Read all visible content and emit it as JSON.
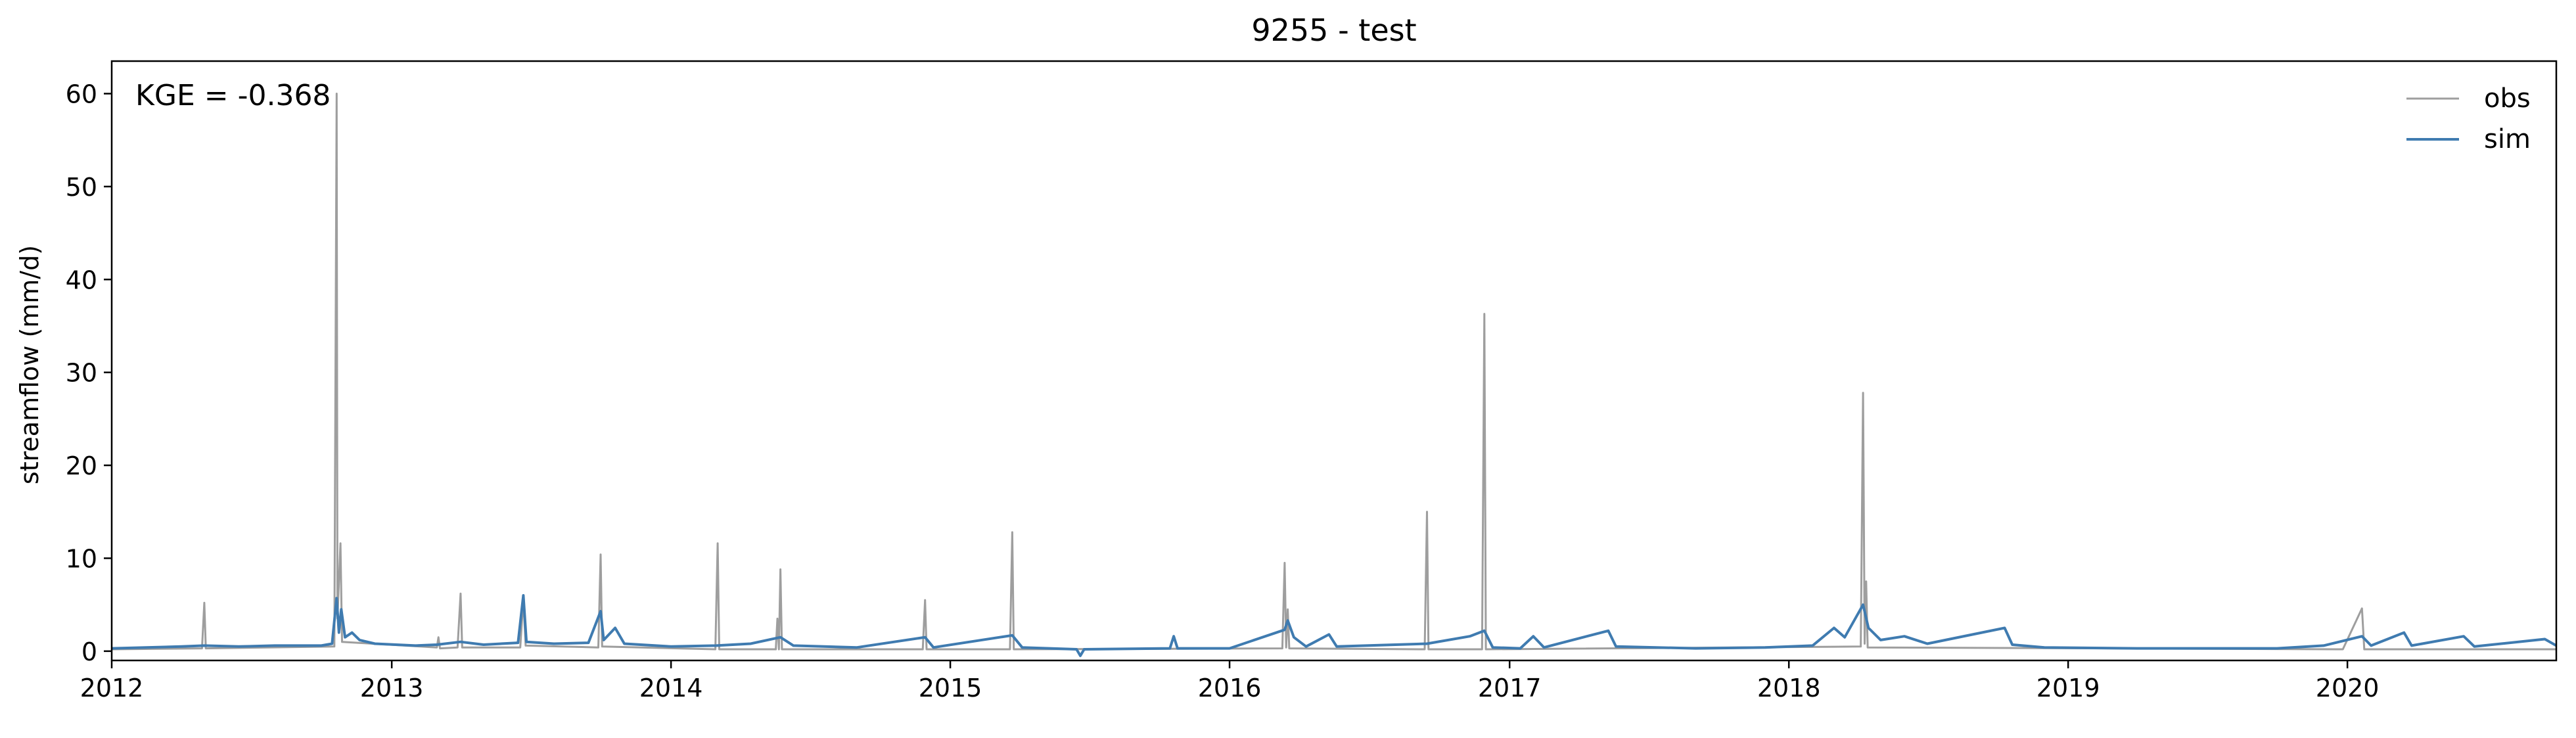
{
  "chart_data": {
    "type": "line",
    "title": "9255 - test",
    "xlabel": "",
    "ylabel": "streamflow (mm/d)",
    "annotation": "KGE = -0.368",
    "xlim": [
      "2012-01-01",
      "2020-09-30"
    ],
    "ylim": [
      -1,
      63.5
    ],
    "xticks": [
      "2012",
      "2013",
      "2014",
      "2015",
      "2016",
      "2017",
      "2018",
      "2019",
      "2020"
    ],
    "yticks": [
      0,
      10,
      20,
      30,
      40,
      50,
      60
    ],
    "grid": false,
    "legend": "top-right",
    "series": [
      {
        "name": "obs",
        "color": "#9e9e9e",
        "points": [
          [
            "2012-01-01",
            0.2
          ],
          [
            "2012-04-28",
            0.3
          ],
          [
            "2012-05-01",
            5.2
          ],
          [
            "2012-05-03",
            0.3
          ],
          [
            "2012-10-18",
            0.5
          ],
          [
            "2012-10-21",
            60.0
          ],
          [
            "2012-10-22",
            3.5
          ],
          [
            "2012-10-26",
            11.6
          ],
          [
            "2012-10-28",
            1.0
          ],
          [
            "2013-03-01",
            0.4
          ],
          [
            "2013-03-03",
            1.5
          ],
          [
            "2013-03-05",
            0.3
          ],
          [
            "2013-03-28",
            0.4
          ],
          [
            "2013-04-01",
            6.2
          ],
          [
            "2013-04-03",
            0.4
          ],
          [
            "2013-06-18",
            0.4
          ],
          [
            "2013-06-22",
            5.6
          ],
          [
            "2013-06-25",
            0.6
          ],
          [
            "2013-09-28",
            0.4
          ],
          [
            "2013-10-01",
            10.4
          ],
          [
            "2013-10-03",
            0.5
          ],
          [
            "2014-02-28",
            0.2
          ],
          [
            "2014-03-03",
            11.6
          ],
          [
            "2014-03-05",
            0.2
          ],
          [
            "2014-05-18",
            0.2
          ],
          [
            "2014-05-20",
            3.5
          ],
          [
            "2014-05-22",
            0.2
          ],
          [
            "2014-05-24",
            8.8
          ],
          [
            "2014-05-26",
            0.2
          ],
          [
            "2014-11-26",
            0.2
          ],
          [
            "2014-11-29",
            5.5
          ],
          [
            "2014-12-01",
            0.2
          ],
          [
            "2015-03-20",
            0.2
          ],
          [
            "2015-03-23",
            12.8
          ],
          [
            "2015-03-25",
            0.2
          ],
          [
            "2016-03-10",
            0.3
          ],
          [
            "2016-03-13",
            9.5
          ],
          [
            "2016-03-15",
            0.4
          ],
          [
            "2016-03-17",
            4.5
          ],
          [
            "2016-03-19",
            0.3
          ],
          [
            "2016-09-12",
            0.2
          ],
          [
            "2016-09-15",
            15.0
          ],
          [
            "2016-09-17",
            0.2
          ],
          [
            "2016-11-26",
            0.2
          ],
          [
            "2016-11-29",
            36.3
          ],
          [
            "2016-12-01",
            0.2
          ],
          [
            "2018-04-05",
            0.5
          ],
          [
            "2018-04-08",
            27.8
          ],
          [
            "2018-04-10",
            0.8
          ],
          [
            "2018-04-12",
            7.5
          ],
          [
            "2018-04-14",
            0.4
          ],
          [
            "2019-12-26",
            0.2
          ],
          [
            "2020-01-20",
            4.6
          ],
          [
            "2020-01-23",
            0.2
          ],
          [
            "2020-09-30",
            0.2
          ]
        ]
      },
      {
        "name": "sim",
        "color": "#3f7bb0",
        "points": [
          [
            "2012-01-01",
            0.3
          ],
          [
            "2012-02-15",
            0.4
          ],
          [
            "2012-04-01",
            0.5
          ],
          [
            "2012-05-01",
            0.6
          ],
          [
            "2012-06-15",
            0.5
          ],
          [
            "2012-08-01",
            0.6
          ],
          [
            "2012-10-01",
            0.6
          ],
          [
            "2012-10-15",
            0.8
          ],
          [
            "2012-10-21",
            5.7
          ],
          [
            "2012-10-24",
            2.0
          ],
          [
            "2012-10-27",
            4.5
          ],
          [
            "2012-11-01",
            1.5
          ],
          [
            "2012-11-10",
            2.0
          ],
          [
            "2012-11-20",
            1.2
          ],
          [
            "2012-12-10",
            0.8
          ],
          [
            "2013-02-01",
            0.6
          ],
          [
            "2013-03-01",
            0.7
          ],
          [
            "2013-04-01",
            1.0
          ],
          [
            "2013-05-01",
            0.7
          ],
          [
            "2013-06-15",
            0.9
          ],
          [
            "2013-06-22",
            6.0
          ],
          [
            "2013-06-26",
            1.0
          ],
          [
            "2013-08-01",
            0.8
          ],
          [
            "2013-09-15",
            0.9
          ],
          [
            "2013-10-01",
            4.3
          ],
          [
            "2013-10-05",
            1.2
          ],
          [
            "2013-10-20",
            2.5
          ],
          [
            "2013-11-01",
            0.8
          ],
          [
            "2014-01-01",
            0.5
          ],
          [
            "2014-03-01",
            0.6
          ],
          [
            "2014-04-15",
            0.8
          ],
          [
            "2014-05-24",
            1.5
          ],
          [
            "2014-06-10",
            0.6
          ],
          [
            "2014-09-01",
            0.4
          ],
          [
            "2014-11-29",
            1.5
          ],
          [
            "2014-12-10",
            0.4
          ],
          [
            "2015-03-23",
            1.7
          ],
          [
            "2015-04-05",
            0.4
          ],
          [
            "2015-06-15",
            0.2
          ],
          [
            "2015-06-20",
            -0.5
          ],
          [
            "2015-06-25",
            0.2
          ],
          [
            "2015-10-15",
            0.3
          ],
          [
            "2015-10-20",
            1.6
          ],
          [
            "2015-10-25",
            0.3
          ],
          [
            "2016-01-01",
            0.3
          ],
          [
            "2016-03-13",
            2.3
          ],
          [
            "2016-03-17",
            3.3
          ],
          [
            "2016-03-25",
            1.5
          ],
          [
            "2016-04-10",
            0.5
          ],
          [
            "2016-05-10",
            1.8
          ],
          [
            "2016-05-20",
            0.5
          ],
          [
            "2016-09-15",
            0.8
          ],
          [
            "2016-11-10",
            1.6
          ],
          [
            "2016-11-29",
            2.2
          ],
          [
            "2016-12-10",
            0.4
          ],
          [
            "2017-01-15",
            0.3
          ],
          [
            "2017-02-01",
            1.6
          ],
          [
            "2017-02-15",
            0.4
          ],
          [
            "2017-05-10",
            2.2
          ],
          [
            "2017-05-20",
            0.5
          ],
          [
            "2017-09-01",
            0.3
          ],
          [
            "2017-12-01",
            0.4
          ],
          [
            "2018-02-01",
            0.6
          ],
          [
            "2018-03-01",
            2.5
          ],
          [
            "2018-03-15",
            1.5
          ],
          [
            "2018-04-08",
            5.0
          ],
          [
            "2018-04-15",
            2.5
          ],
          [
            "2018-05-01",
            1.2
          ],
          [
            "2018-06-01",
            1.6
          ],
          [
            "2018-07-01",
            0.8
          ],
          [
            "2018-10-10",
            2.5
          ],
          [
            "2018-10-20",
            0.7
          ],
          [
            "2018-12-01",
            0.4
          ],
          [
            "2019-04-01",
            0.3
          ],
          [
            "2019-10-01",
            0.3
          ],
          [
            "2019-12-01",
            0.6
          ],
          [
            "2020-01-20",
            1.6
          ],
          [
            "2020-02-01",
            0.6
          ],
          [
            "2020-03-15",
            2.0
          ],
          [
            "2020-03-25",
            0.6
          ],
          [
            "2020-06-01",
            1.6
          ],
          [
            "2020-06-15",
            0.5
          ],
          [
            "2020-09-15",
            1.3
          ],
          [
            "2020-09-30",
            0.6
          ]
        ]
      }
    ]
  }
}
